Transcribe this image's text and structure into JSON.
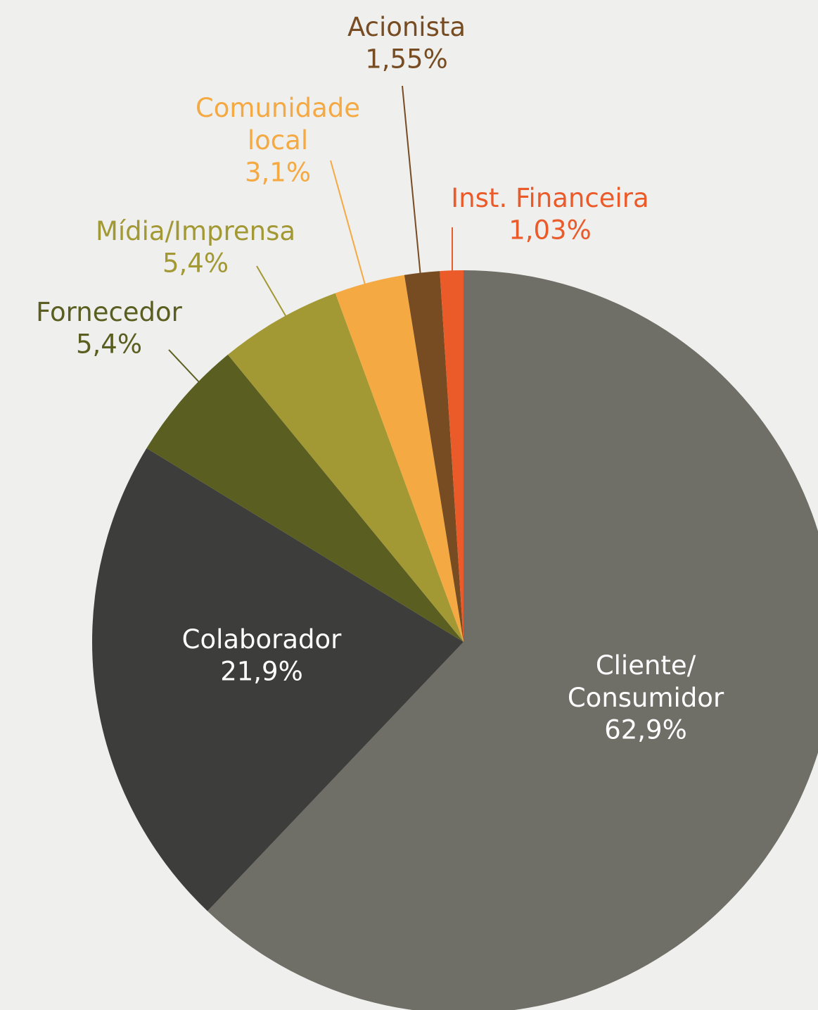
{
  "chart_data": {
    "type": "pie",
    "categories": [
      "Cliente/\nConsumidor",
      "Colaborador",
      "Fornecedor",
      "Mídia/Imprensa",
      "Comunidade\nlocal",
      "Acionista",
      "Inst. Financeira"
    ],
    "values": [
      62.9,
      21.9,
      5.4,
      5.4,
      3.1,
      1.55,
      1.03
    ],
    "value_labels": [
      "62,9%",
      "21,9%",
      "5,4%",
      "5,4%",
      "3,1%",
      "1,55%",
      "1,03%"
    ],
    "colors": [
      "#6f6e67",
      "#3d3d3b",
      "#5a5e20",
      "#a29834",
      "#f5a942",
      "#774c22",
      "#eb5b2a"
    ]
  }
}
